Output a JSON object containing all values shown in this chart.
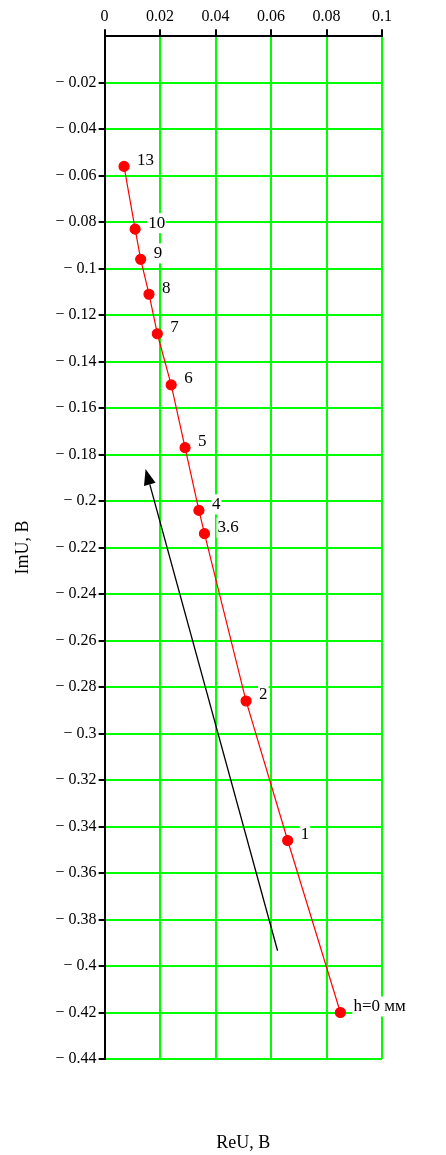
{
  "chart_data": {
    "type": "line",
    "xlabel": "ReU, B",
    "ylabel": "ImU, B",
    "x": [
      0.085,
      0.066,
      0.051,
      0.036,
      0.034,
      0.029,
      0.024,
      0.019,
      0.016,
      0.013,
      0.011,
      0.007
    ],
    "series": [
      {
        "color": "#ff0000",
        "values": [
          -0.42,
          -0.346,
          -0.286,
          -0.214,
          -0.204,
          -0.177,
          -0.15,
          -0.128,
          -0.111,
          -0.096,
          -0.083,
          -0.056
        ]
      }
    ],
    "xlim": [
      0,
      0.1
    ],
    "xticks": [
      0,
      0.02,
      0.04,
      0.06,
      0.08,
      0.1
    ],
    "ylim": [
      -0.44,
      0
    ],
    "yticks": [
      {
        "value": -0.02,
        "label": "− 0.02"
      },
      {
        "value": -0.04,
        "label": "− 0.04"
      },
      {
        "value": -0.06,
        "label": "− 0.06"
      },
      {
        "value": -0.08,
        "label": "− 0.08"
      },
      {
        "value": -0.1,
        "label": "− 0.1"
      },
      {
        "value": -0.12,
        "label": "− 0.12"
      },
      {
        "value": -0.14,
        "label": "− 0.14"
      },
      {
        "value": -0.16,
        "label": "− 0.16"
      },
      {
        "value": -0.18,
        "label": "− 0.18"
      },
      {
        "value": -0.2,
        "label": "− 0.2"
      },
      {
        "value": -0.22,
        "label": "− 0.22"
      },
      {
        "value": -0.24,
        "label": "− 0.24"
      },
      {
        "value": -0.26,
        "label": "− 0.26"
      },
      {
        "value": -0.28,
        "label": "− 0.28"
      },
      {
        "value": -0.3,
        "label": "− 0.3"
      },
      {
        "value": -0.32,
        "label": "− 0.32"
      },
      {
        "value": -0.34,
        "label": "− 0.34"
      },
      {
        "value": -0.36,
        "label": "− 0.36"
      },
      {
        "value": -0.38,
        "label": "− 0.38"
      },
      {
        "value": -0.4,
        "label": "− 0.4"
      },
      {
        "value": -0.42,
        "label": "− 0.42"
      },
      {
        "value": -0.44,
        "label": "− 0.44"
      }
    ],
    "grid": true,
    "marker": "circle",
    "line_style": "solid",
    "legend": false,
    "annotations": [
      {
        "text": "h=0 мм",
        "x": 0.085,
        "y": -0.42
      },
      {
        "text": "1",
        "x": 0.066,
        "y": -0.346
      },
      {
        "text": "2",
        "x": 0.051,
        "y": -0.286
      },
      {
        "text": "3.6",
        "x": 0.036,
        "y": -0.214
      },
      {
        "text": "4",
        "x": 0.034,
        "y": -0.204
      },
      {
        "text": "5",
        "x": 0.029,
        "y": -0.177
      },
      {
        "text": "6",
        "x": 0.024,
        "y": -0.15
      },
      {
        "text": "7",
        "x": 0.019,
        "y": -0.128
      },
      {
        "text": "8",
        "x": 0.016,
        "y": -0.111
      },
      {
        "text": "9",
        "x": 0.013,
        "y": -0.096
      },
      {
        "text": "10",
        "x": 0.011,
        "y": -0.083
      },
      {
        "text": "13",
        "x": 0.007,
        "y": -0.056
      }
    ]
  }
}
